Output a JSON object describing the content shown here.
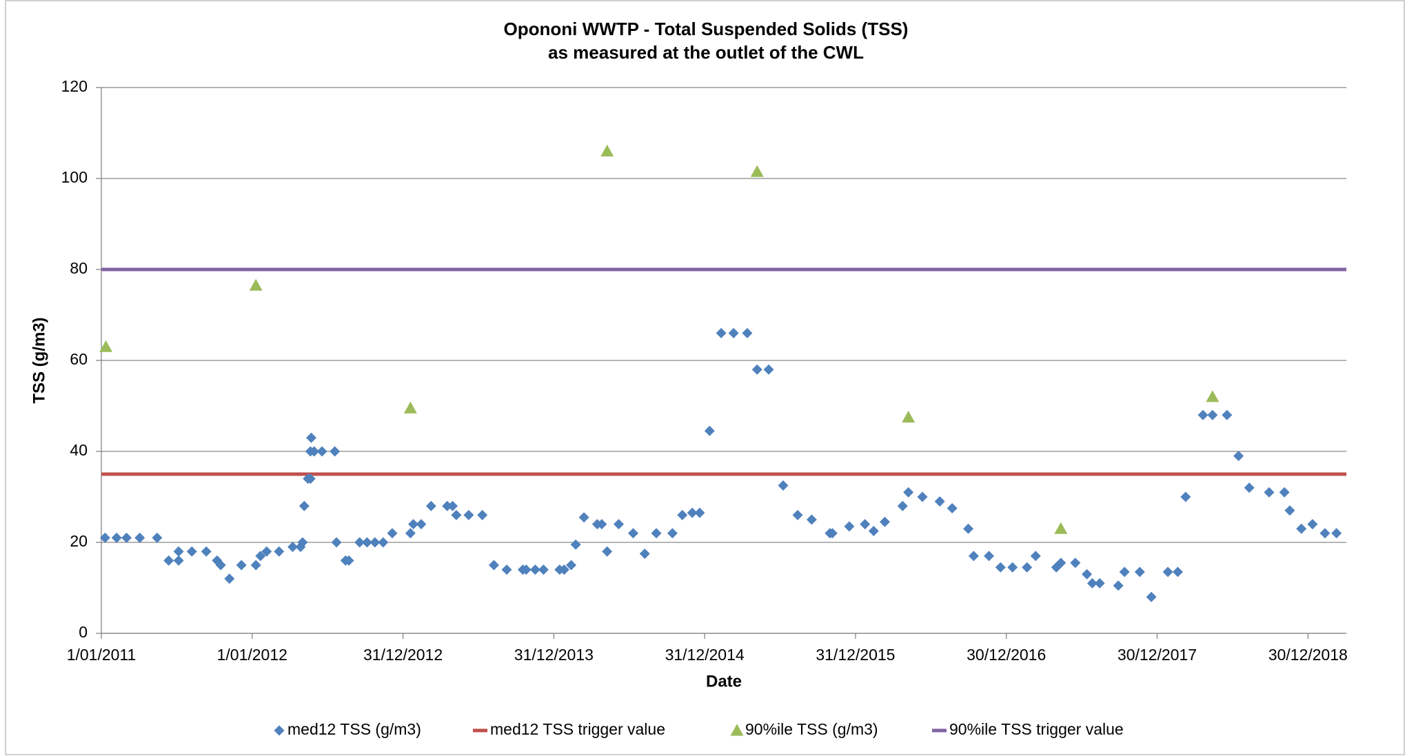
{
  "chart_data": {
    "type": "scatter",
    "title": [
      "Opononi WWTP - Total Suspended Solids (TSS)",
      "as measured at the outlet of the CWL"
    ],
    "x_label": "Date",
    "y_label": "TSS  (g/m3)",
    "xlim": [
      "2011-01-01",
      "2019-04-02"
    ],
    "xticks": [
      {
        "value": "2011-01-01",
        "label": "1/01/2011"
      },
      {
        "value": "2012-01-01",
        "label": "1/01/2012"
      },
      {
        "value": "2012-12-31",
        "label": "31/12/2012"
      },
      {
        "value": "2013-12-31",
        "label": "31/12/2013"
      },
      {
        "value": "2014-12-31",
        "label": "31/12/2014"
      },
      {
        "value": "2015-12-31",
        "label": "31/12/2015"
      },
      {
        "value": "2016-12-30",
        "label": "30/12/2016"
      },
      {
        "value": "2017-12-30",
        "label": "30/12/2017"
      },
      {
        "value": "2018-12-30",
        "label": "30/12/2018"
      }
    ],
    "ylim": [
      0,
      120
    ],
    "yticks": [
      0,
      20,
      40,
      60,
      80,
      100,
      120
    ],
    "grid": true,
    "legend": "bottom",
    "series": [
      {
        "name": "med12 TSS (g/m3)",
        "color": "#4f81bd",
        "marker": "diamond",
        "x": [
          "2011-01-10",
          "2011-02-07",
          "2011-03-03",
          "2011-04-04",
          "2011-05-16",
          "2011-06-13",
          "2011-07-07",
          "2011-07-07",
          "2011-08-08",
          "2011-09-12",
          "2011-10-08",
          "2011-10-17",
          "2011-11-07",
          "2011-12-06",
          "2012-01-10",
          "2012-01-21",
          "2012-02-05",
          "2012-03-06",
          "2012-04-08",
          "2012-04-27",
          "2012-05-02",
          "2012-05-06",
          "2012-05-15",
          "2012-05-21",
          "2012-05-21",
          "2012-05-23",
          "2012-05-30",
          "2012-06-18",
          "2012-07-19",
          "2012-07-23",
          "2012-08-14",
          "2012-08-22",
          "2012-09-17",
          "2012-10-05",
          "2012-10-24",
          "2012-11-13",
          "2012-12-05",
          "2013-01-18",
          "2013-01-25",
          "2013-02-13",
          "2013-03-09",
          "2013-04-17",
          "2013-04-30",
          "2013-05-09",
          "2013-06-08",
          "2013-07-11",
          "2013-08-08",
          "2013-09-08",
          "2013-10-17",
          "2013-10-25",
          "2013-11-16",
          "2013-12-06",
          "2014-01-14",
          "2014-01-25",
          "2014-02-11",
          "2014-02-22",
          "2014-03-14",
          "2014-04-15",
          "2014-04-26",
          "2014-05-09",
          "2014-06-06",
          "2014-07-11",
          "2014-08-08",
          "2014-09-05",
          "2014-10-14",
          "2014-11-07",
          "2014-12-01",
          "2014-12-19",
          "2015-01-12",
          "2015-02-09",
          "2015-03-11",
          "2015-04-13",
          "2015-05-07",
          "2015-06-04",
          "2015-07-09",
          "2015-08-13",
          "2015-09-16",
          "2015-10-30",
          "2015-11-05",
          "2015-12-16",
          "2016-01-23",
          "2016-02-13",
          "2016-03-11",
          "2016-04-23",
          "2016-05-07",
          "2016-06-10",
          "2016-07-22",
          "2016-08-21",
          "2016-09-29",
          "2016-10-12",
          "2016-11-18",
          "2016-12-16",
          "2017-01-14",
          "2017-02-18",
          "2017-03-11",
          "2017-04-30",
          "2017-05-11",
          "2017-06-15",
          "2017-07-13",
          "2017-07-26",
          "2017-08-13",
          "2017-09-27",
          "2017-10-12",
          "2017-11-18",
          "2017-12-16",
          "2018-01-25",
          "2018-02-18",
          "2018-03-09",
          "2018-04-20",
          "2018-05-13",
          "2018-06-17",
          "2018-07-15",
          "2018-08-10",
          "2018-09-27",
          "2018-11-03",
          "2018-11-16",
          "2018-12-14",
          "2019-01-10",
          "2019-02-09",
          "2019-03-09"
        ],
        "values": [
          21,
          21,
          21,
          21,
          21,
          16,
          16,
          18,
          18,
          18,
          16,
          15,
          12,
          15,
          15,
          17,
          18,
          18,
          19,
          19,
          20,
          28,
          34,
          34,
          40,
          43,
          40,
          40,
          40,
          20,
          16,
          16,
          20,
          20,
          20,
          20,
          22,
          22,
          24,
          24,
          28,
          28,
          28,
          26,
          26,
          26,
          15,
          14,
          14,
          14,
          14,
          14,
          14,
          14,
          15,
          19.5,
          25.5,
          24,
          24,
          18,
          24,
          22,
          17.5,
          22,
          22,
          26,
          26.5,
          26.5,
          44.5,
          66,
          66,
          66,
          58,
          58,
          32.5,
          26,
          25,
          22,
          22,
          23.5,
          24,
          22.5,
          24.5,
          28,
          31,
          30,
          29,
          27.5,
          23,
          17,
          17,
          14.5,
          14.5,
          14.5,
          17,
          14.5,
          15.5,
          15.5,
          13,
          11,
          11,
          10.5,
          13.5,
          13.5,
          8,
          13.5,
          13.5,
          30,
          48,
          48,
          48,
          39,
          32,
          31,
          31,
          27,
          23,
          24,
          22,
          22
        ]
      },
      {
        "name": "med12 TSS trigger value",
        "color": "#c0504d",
        "marker": "line",
        "x": [
          "2011-01-01",
          "2019-04-02"
        ],
        "values": [
          35,
          35
        ]
      },
      {
        "name": "90%ile TSS (g/m3)",
        "color": "#9bbb59",
        "marker": "triangle",
        "x": [
          "2011-01-12",
          "2012-01-10",
          "2013-01-18",
          "2014-05-09",
          "2015-05-07",
          "2016-05-07",
          "2017-05-11",
          "2018-05-13"
        ],
        "values": [
          63,
          76.5,
          49.5,
          106,
          101.5,
          47.5,
          23,
          52
        ]
      },
      {
        "name": "90%ile TSS trigger value",
        "color": "#8064a2",
        "marker": "line",
        "x": [
          "2011-01-01",
          "2019-04-02"
        ],
        "values": [
          80,
          80
        ]
      }
    ]
  }
}
